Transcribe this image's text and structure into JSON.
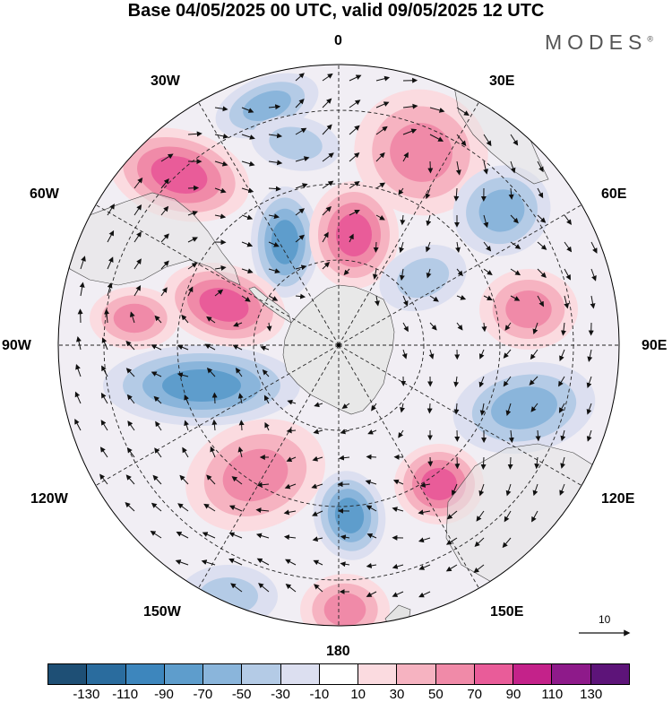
{
  "title": "Base 04/05/2025 00 UTC, valid 09/05/2025 12 UTC",
  "brand": {
    "name": "MODES",
    "mark": "®"
  },
  "longitude_labels": [
    {
      "id": "lon-0",
      "text": "0"
    },
    {
      "id": "lon-30e",
      "text": "30E"
    },
    {
      "id": "lon-60e",
      "text": "60E"
    },
    {
      "id": "lon-90e",
      "text": "90E"
    },
    {
      "id": "lon-120e",
      "text": "120E"
    },
    {
      "id": "lon-150e",
      "text": "150E"
    },
    {
      "id": "lon-180",
      "text": "180"
    },
    {
      "id": "lon-150w",
      "text": "150W"
    },
    {
      "id": "lon-120w",
      "text": "120W"
    },
    {
      "id": "lon-90w",
      "text": "90W"
    },
    {
      "id": "lon-60w",
      "text": "60W"
    },
    {
      "id": "lon-30w",
      "text": "30W"
    }
  ],
  "projection": "south-polar-stereographic",
  "graticule": {
    "style": "dashed",
    "meridian_step_deg": 30
  },
  "anomaly_field": {
    "centers": [
      {
        "name": "negative-anomaly",
        "sign": -1,
        "lon_approx": "20W"
      },
      {
        "name": "negative-anomaly",
        "sign": -1,
        "lon_approx": "30W"
      },
      {
        "name": "positive-anomaly",
        "sign": 1,
        "lon_approx": "20E"
      },
      {
        "name": "positive-anomaly",
        "sign": 1,
        "lon_approx": "10E"
      },
      {
        "name": "positive-anomaly",
        "sign": 1,
        "lon_approx": "55W"
      },
      {
        "name": "negative-anomaly",
        "sign": -1,
        "lon_approx": "55E"
      },
      {
        "name": "negative-anomaly",
        "sign": -1,
        "lon_approx": "55W"
      },
      {
        "name": "positive-anomaly",
        "sign": 1,
        "lon_approx": "80W"
      },
      {
        "name": "positive-anomaly",
        "sign": 1,
        "lon_approx": "85W"
      },
      {
        "name": "positive-anomaly",
        "sign": 1,
        "lon_approx": "85E"
      },
      {
        "name": "negative-anomaly",
        "sign": -1,
        "lon_approx": "100W"
      },
      {
        "name": "negative-anomaly",
        "sign": -1,
        "lon_approx": "105E"
      },
      {
        "name": "positive-anomaly",
        "sign": 1,
        "lon_approx": "135W"
      },
      {
        "name": "positive-anomaly",
        "sign": 1,
        "lon_approx": "125E"
      },
      {
        "name": "negative-anomaly",
        "sign": -1,
        "lon_approx": "160E"
      },
      {
        "name": "positive-anomaly",
        "sign": 1,
        "lon_approx": "180"
      },
      {
        "name": "negative-anomaly",
        "sign": -1,
        "lon_approx": "160W"
      },
      {
        "name": "positive-anomaly",
        "sign": 1,
        "lon_approx": "70W"
      },
      {
        "name": "negative-anomaly",
        "sign": -1,
        "lon_approx": "75E"
      }
    ]
  },
  "wind_reference": {
    "label": "10"
  },
  "colorbar": {
    "colors": [
      "#1e4f75",
      "#2a6c9e",
      "#3d86bd",
      "#5e9dcc",
      "#8ab5db",
      "#b4cbe6",
      "#dcdff0",
      "#ffffff",
      "#fbdbe0",
      "#f6b3c1",
      "#f08aa8",
      "#e95c99",
      "#c4228a",
      "#8e1a8a",
      "#5d1479"
    ],
    "ticks": [
      "-130",
      "-110",
      "-90",
      "-70",
      "-50",
      "-30",
      "-10",
      "10",
      "30",
      "50",
      "70",
      "90",
      "110",
      "130"
    ]
  }
}
